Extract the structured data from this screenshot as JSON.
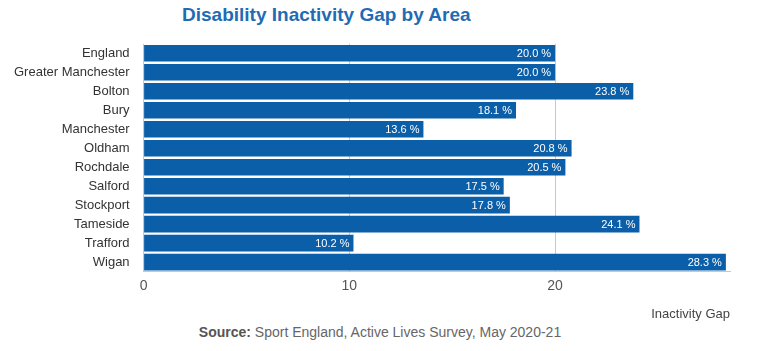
{
  "chart_data": {
    "type": "bar",
    "orientation": "horizontal",
    "title": "Disability Inactivity Gap by Area",
    "x_label": "Inactivity Gap",
    "source": "Source: Sport England, Active Lives Survey, May 2020-21",
    "categories": [
      "England",
      "Greater Manchester",
      "Bolton",
      "Bury",
      "Manchester",
      "Oldham",
      "Rochdale",
      "Salford",
      "Stockport",
      "Tameside",
      "Trafford",
      "Wigan"
    ],
    "values": [
      20.0,
      20.0,
      23.8,
      18.1,
      13.6,
      20.8,
      20.5,
      17.5,
      17.8,
      24.1,
      10.2,
      28.3
    ],
    "value_labels": [
      "20.0 %",
      "20.0 %",
      "23.8 %",
      "18.1 %",
      "13.6 %",
      "20.8 %",
      "20.5 %",
      "17.5 %",
      "17.8 %",
      "24.1 %",
      "10.2 %",
      "28.3 %"
    ],
    "color": "#0b5ea8",
    "xlim": [
      0,
      28.5
    ],
    "xticks": [
      0,
      10,
      20
    ],
    "grid": true,
    "data_labels": true,
    "legend": false
  }
}
